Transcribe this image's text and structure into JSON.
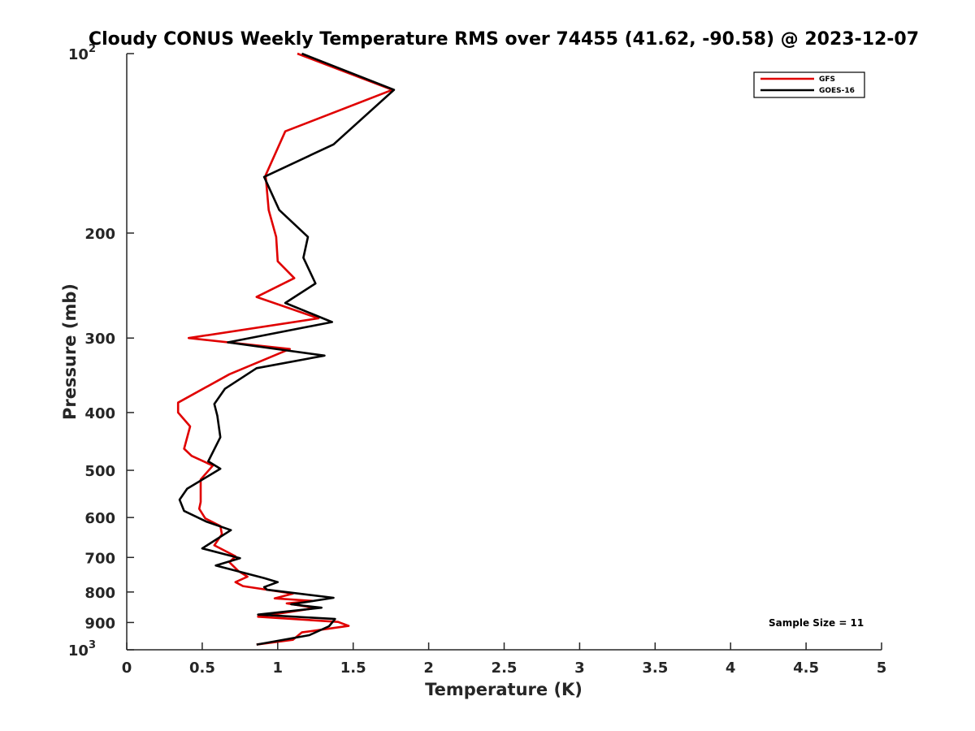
{
  "chart_data": {
    "type": "line",
    "title": "Cloudy CONUS Weekly Temperature RMS over 74455 (41.62, -90.58) @ 2023-12-07",
    "xlabel": "Temperature (K)",
    "ylabel": "Pressure (mb)",
    "xlim": [
      0,
      5
    ],
    "ylim": [
      100,
      1000
    ],
    "y_scale": "log",
    "y_reversed": true,
    "x_ticks": [
      "0",
      "0.5",
      "1",
      "1.5",
      "2",
      "2.5",
      "3",
      "3.5",
      "4",
      "4.5",
      "5"
    ],
    "y_ticks": [
      {
        "value": 100,
        "label": "10",
        "sup": "2"
      },
      {
        "value": 200,
        "label": "200",
        "sup": ""
      },
      {
        "value": 300,
        "label": "300",
        "sup": ""
      },
      {
        "value": 400,
        "label": "400",
        "sup": ""
      },
      {
        "value": 500,
        "label": "500",
        "sup": ""
      },
      {
        "value": 600,
        "label": "600",
        "sup": ""
      },
      {
        "value": 700,
        "label": "700",
        "sup": ""
      },
      {
        "value": 800,
        "label": "800",
        "sup": ""
      },
      {
        "value": 900,
        "label": "900",
        "sup": ""
      },
      {
        "value": 1000,
        "label": "10",
        "sup": "3"
      }
    ],
    "grid": false,
    "legend_position": "top-right",
    "annotation": "Sample Size = 11",
    "series": [
      {
        "name": "GFS",
        "color": "#e00000",
        "points": [
          [
            1.13,
            100
          ],
          [
            1.76,
            115
          ],
          [
            1.05,
            135
          ],
          [
            0.92,
            160
          ],
          [
            0.94,
            183
          ],
          [
            0.99,
            203
          ],
          [
            1.0,
            223
          ],
          [
            1.11,
            238
          ],
          [
            0.86,
            256
          ],
          [
            1.27,
            278
          ],
          [
            0.41,
            300
          ],
          [
            1.08,
            313
          ],
          [
            0.68,
            345
          ],
          [
            0.34,
            385
          ],
          [
            0.34,
            400
          ],
          [
            0.42,
            422
          ],
          [
            0.38,
            460
          ],
          [
            0.43,
            473
          ],
          [
            0.57,
            491
          ],
          [
            0.49,
            518
          ],
          [
            0.49,
            565
          ],
          [
            0.48,
            580
          ],
          [
            0.52,
            602
          ],
          [
            0.62,
            620
          ],
          [
            0.63,
            640
          ],
          [
            0.58,
            668
          ],
          [
            0.72,
            697
          ],
          [
            0.68,
            713
          ],
          [
            0.74,
            738
          ],
          [
            0.8,
            754
          ],
          [
            0.72,
            770
          ],
          [
            0.77,
            782
          ],
          [
            1.1,
            805
          ],
          [
            0.98,
            820
          ],
          [
            1.23,
            828
          ],
          [
            1.06,
            836
          ],
          [
            1.25,
            851
          ],
          [
            0.87,
            880
          ],
          [
            1.4,
            898
          ],
          [
            1.47,
            912
          ],
          [
            1.16,
            935
          ],
          [
            1.1,
            962
          ],
          [
            0.86,
            980
          ]
        ]
      },
      {
        "name": "GOES-16",
        "color": "#000000",
        "points": [
          [
            1.16,
            100
          ],
          [
            1.77,
            115
          ],
          [
            1.37,
            142
          ],
          [
            0.91,
            161
          ],
          [
            1.01,
            183
          ],
          [
            1.2,
            203
          ],
          [
            1.17,
            220
          ],
          [
            1.25,
            243
          ],
          [
            1.05,
            262
          ],
          [
            1.36,
            282
          ],
          [
            0.67,
            305
          ],
          [
            1.31,
            321
          ],
          [
            0.86,
            337
          ],
          [
            0.65,
            365
          ],
          [
            0.58,
            387
          ],
          [
            0.6,
            405
          ],
          [
            0.62,
            440
          ],
          [
            0.54,
            483
          ],
          [
            0.62,
            497
          ],
          [
            0.4,
            537
          ],
          [
            0.35,
            560
          ],
          [
            0.38,
            585
          ],
          [
            0.53,
            610
          ],
          [
            0.69,
            630
          ],
          [
            0.5,
            676
          ],
          [
            0.75,
            702
          ],
          [
            0.59,
            722
          ],
          [
            0.91,
            758
          ],
          [
            1.0,
            770
          ],
          [
            0.91,
            785
          ],
          [
            0.93,
            793
          ],
          [
            1.37,
            818
          ],
          [
            1.09,
            839
          ],
          [
            1.29,
            850
          ],
          [
            0.87,
            873
          ],
          [
            1.38,
            888
          ],
          [
            1.34,
            913
          ],
          [
            1.21,
            945
          ],
          [
            0.86,
            980
          ]
        ]
      }
    ]
  }
}
